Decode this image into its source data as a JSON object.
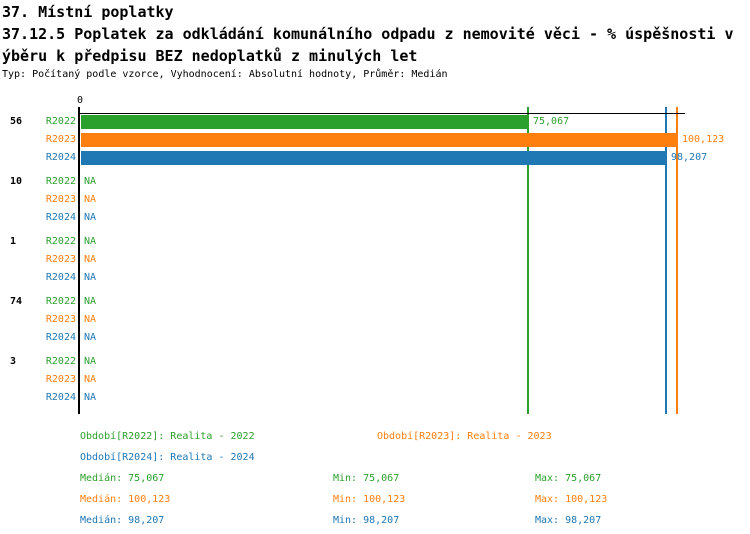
{
  "header": {
    "title_line1": "37. Místní poplatky",
    "title_line2": "37.12.5 Poplatek za odkládání komunálního odpadu z nemovité věci - % úspěšnosti v",
    "title_line3": "ýběru k předpisu BEZ nedoplatků z minulých let",
    "meta": "Typ: Počítaný podle vzorce, Vyhodnocení: Absolutní hodnoty, Průměr: Medián"
  },
  "chart_data": {
    "type": "bar",
    "orientation": "horizontal",
    "title": "37.12.5 Poplatek za odkládání komunálního odpadu z nemovité věci - % úspěšnosti výběru k předpisu BEZ nedoplatků z minulých let",
    "x_axis": {
      "origin_tick_label": "0",
      "min": 0,
      "max_visible_value": 100.123,
      "grid": false
    },
    "series": [
      {
        "id": "R2022",
        "label": "Realita - 2022",
        "color": "#2ca02c"
      },
      {
        "id": "R2023",
        "label": "Realita - 2023",
        "color": "#ff7f0e"
      },
      {
        "id": "R2024",
        "label": "Realita - 2024",
        "color": "#1f77b4"
      }
    ],
    "groups": [
      {
        "label": "56",
        "values": [
          75.067,
          100.123,
          98.207
        ],
        "value_labels": [
          "75,067",
          "100,123",
          "98,207"
        ]
      },
      {
        "label": "10",
        "values": [
          null,
          null,
          null
        ],
        "value_labels": [
          "NA",
          "NA",
          "NA"
        ]
      },
      {
        "label": "1",
        "values": [
          null,
          null,
          null
        ],
        "value_labels": [
          "NA",
          "NA",
          "NA"
        ]
      },
      {
        "label": "74",
        "values": [
          null,
          null,
          null
        ],
        "value_labels": [
          "NA",
          "NA",
          "NA"
        ]
      },
      {
        "label": "3",
        "values": [
          null,
          null,
          null
        ],
        "value_labels": [
          "NA",
          "NA",
          "NA"
        ]
      }
    ],
    "reference_lines": [
      {
        "series": "R2022",
        "value": 75.067
      },
      {
        "series": "R2023",
        "value": 100.123
      },
      {
        "series": "R2024",
        "value": 98.207
      }
    ],
    "stats": {
      "R2022": {
        "median": 75.067,
        "min": 75.067,
        "max": 75.067
      },
      "R2023": {
        "median": 100.123,
        "min": 100.123,
        "max": 100.123
      },
      "R2024": {
        "median": 98.207,
        "min": 98.207,
        "max": 98.207
      }
    }
  },
  "legend": {
    "items": [
      {
        "series": "R2022",
        "text": "Období[R2022]: Realita - 2022",
        "row": 0,
        "col": 0
      },
      {
        "series": "R2023",
        "text": "Období[R2023]: Realita - 2023",
        "row": 0,
        "col": 1
      },
      {
        "series": "R2024",
        "text": "Období[R2024]: Realita - 2024",
        "row": 1,
        "col": 0
      }
    ]
  },
  "stats_table": {
    "rows": [
      {
        "series": "R2022",
        "median": "Medián: 75,067",
        "min": "Min: 75,067",
        "max": "Max: 75,067"
      },
      {
        "series": "R2023",
        "median": "Medián: 100,123",
        "min": "Min: 100,123",
        "max": "Max: 100,123"
      },
      {
        "series": "R2024",
        "median": "Medián: 98,207",
        "min": "Min: 98,207",
        "max": "Max: 98,207"
      }
    ]
  }
}
